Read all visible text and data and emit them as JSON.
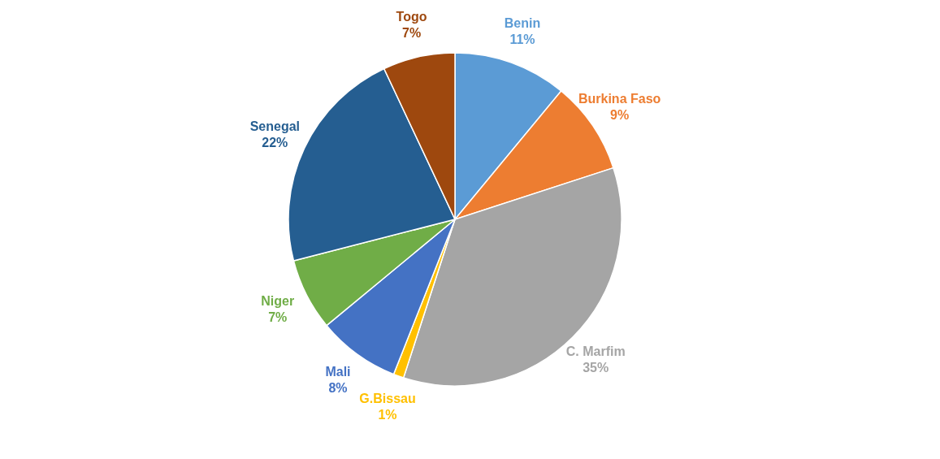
{
  "chart_data": {
    "type": "pie",
    "categories": [
      "Benin",
      "Burkina Faso",
      "C. Marfim",
      "G.Bissau",
      "Mali",
      "Niger",
      "Senegal",
      "Togo"
    ],
    "values": [
      11,
      9,
      35,
      1,
      8,
      7,
      22,
      7
    ],
    "value_labels": [
      "11%",
      "9%",
      "35%",
      "1%",
      "8%",
      "7%",
      "22%",
      "7%"
    ],
    "colors": [
      "#5b9bd5",
      "#ed7d31",
      "#a5a5a5",
      "#ffc000",
      "#4472c4",
      "#70ad47",
      "#255e91",
      "#9e480e"
    ]
  }
}
